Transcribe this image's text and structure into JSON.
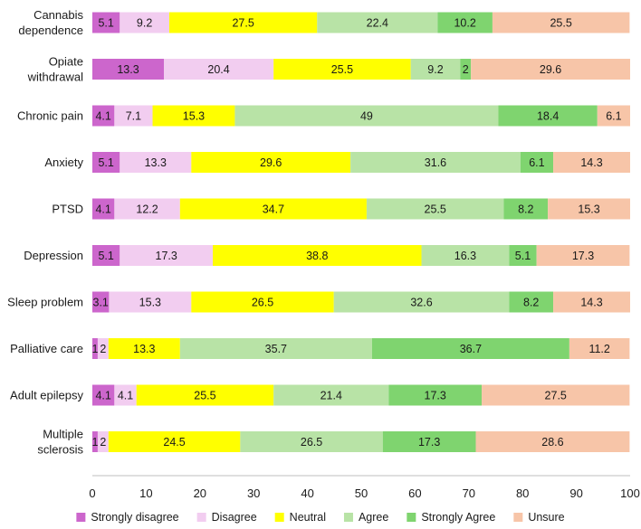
{
  "chart_data": {
    "type": "bar",
    "orientation": "horizontal",
    "stacked": true,
    "title": "",
    "xlabel": "",
    "ylabel": "",
    "xlim": [
      0,
      100
    ],
    "xticks": [
      "0",
      "10",
      "20",
      "30",
      "40",
      "50",
      "60",
      "70",
      "80",
      "90",
      "100"
    ],
    "grid": false,
    "legend_position": "bottom",
    "categories": [
      [
        "Cannabis",
        "dependence"
      ],
      [
        "Opiate",
        "withdrawal"
      ],
      [
        "Chronic pain"
      ],
      [
        "Anxiety"
      ],
      [
        "PTSD"
      ],
      [
        "Depression"
      ],
      [
        "Sleep problem"
      ],
      [
        "Palliative care"
      ],
      [
        "Adult epilepsy"
      ],
      [
        "Multiple",
        "sclerosis"
      ]
    ],
    "series": [
      {
        "name": "Strongly disagree",
        "color": "#cc66cc",
        "values": [
          5.1,
          13.3,
          4.1,
          5.1,
          4.1,
          5.1,
          3.1,
          1,
          4.1,
          1
        ],
        "labels": [
          "5.1",
          "13.3",
          "4.1",
          "5.1",
          "4.1",
          "5.1",
          "3.1",
          "1",
          "4.1",
          "1"
        ]
      },
      {
        "name": "Disagree",
        "color": "#f2cdf0",
        "values": [
          9.2,
          20.4,
          7.1,
          13.3,
          12.2,
          17.3,
          15.3,
          2,
          4.1,
          2
        ],
        "labels": [
          "9.2",
          "20.4",
          "7.1",
          "13.3",
          "12.2",
          "17.3",
          "15.3",
          "2",
          "4.1",
          "2"
        ]
      },
      {
        "name": "Neutral",
        "color": "#ffff00",
        "values": [
          27.5,
          25.5,
          15.3,
          29.6,
          34.7,
          38.8,
          26.5,
          13.3,
          25.5,
          24.5
        ],
        "labels": [
          "27.5",
          "25.5",
          "15.3",
          "29.6",
          "34.7",
          "38.8",
          "26.5",
          "13.3",
          "25.5",
          "24.5"
        ]
      },
      {
        "name": "Agree",
        "color": "#b8e3a6",
        "values": [
          22.4,
          9.2,
          49,
          31.6,
          25.5,
          16.3,
          32.6,
          35.7,
          21.4,
          26.5
        ],
        "labels": [
          "22.4",
          "9.2",
          "49",
          "31.6",
          "25.5",
          "16.3",
          "32.6",
          "35.7",
          "21.4",
          "26.5"
        ]
      },
      {
        "name": "Strongly Agree",
        "color": "#7fd46f",
        "values": [
          10.2,
          2,
          18.4,
          6.1,
          8.2,
          5.1,
          8.2,
          36.7,
          17.3,
          17.3
        ],
        "labels": [
          "10.2",
          "2",
          "18.4",
          "6.1",
          "8.2",
          "5.1",
          "8.2",
          "36.7",
          "17.3",
          "17.3"
        ]
      },
      {
        "name": "Unsure",
        "color": "#f7c5a8",
        "values": [
          25.5,
          29.6,
          6.1,
          14.3,
          15.3,
          17.3,
          14.3,
          11.2,
          27.5,
          28.6
        ],
        "labels": [
          "25.5",
          "29.6",
          "6.1",
          "14.3",
          "15.3",
          "17.3",
          "14.3",
          "11.2",
          "27.5",
          "28.6"
        ]
      }
    ]
  }
}
